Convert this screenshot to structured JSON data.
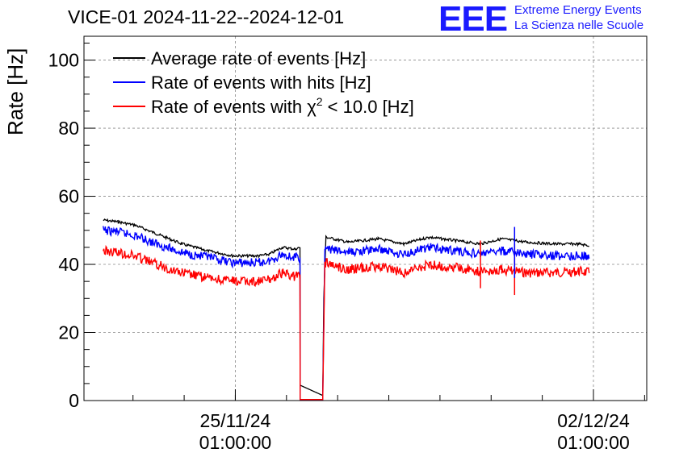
{
  "chart_data": {
    "type": "line",
    "title": "VICE-01 2024-11-22--2024-12-01",
    "ylabel": "Rate [Hz]",
    "xlabel": "",
    "ylim": [
      0,
      107
    ],
    "yticks": [
      0,
      20,
      40,
      60,
      80,
      100
    ],
    "xlim": [
      "2024-11-22T02:00",
      "2024-12-03T02:00"
    ],
    "xticks": [
      {
        "t": "2024-11-25T01:00",
        "date": "25/11/24",
        "time": "01:00:00"
      },
      {
        "t": "2024-12-02T01:00",
        "date": "02/12/24",
        "time": "01:00:00"
      }
    ],
    "grid": true,
    "legend_position": "top-left",
    "series": [
      {
        "name": "Average rate of events [Hz]",
        "color": "#000000",
        "points": [
          [
            "2024-11-22T11:00",
            53.0
          ],
          [
            "2024-11-22T18:00",
            52.5
          ],
          [
            "2024-11-23T02:00",
            51.5
          ],
          [
            "2024-11-23T12:00",
            49.0
          ],
          [
            "2024-11-24T00:00",
            46.0
          ],
          [
            "2024-11-24T12:00",
            44.0
          ],
          [
            "2024-11-25T00:00",
            42.5
          ],
          [
            "2024-11-25T12:00",
            42.5
          ],
          [
            "2024-11-25T17:00",
            43.0
          ],
          [
            "2024-11-25T23:00",
            45.0
          ],
          [
            "2024-11-26T05:00",
            44.5
          ],
          [
            "2024-11-26T07:20",
            45.0
          ],
          [
            "2024-11-26T07:25",
            4.5
          ],
          [
            "2024-11-26T18:00",
            1.5
          ],
          [
            "2024-11-26T18:30",
            30.0
          ],
          [
            "2024-11-26T19:30",
            48.0
          ],
          [
            "2024-11-27T06:00",
            46.5
          ],
          [
            "2024-11-27T20:00",
            47.5
          ],
          [
            "2024-11-28T08:00",
            46.0
          ],
          [
            "2024-11-28T20:00",
            48.0
          ],
          [
            "2024-11-29T08:00",
            47.0
          ],
          [
            "2024-11-29T20:00",
            46.0
          ],
          [
            "2024-11-30T06:00",
            47.5
          ],
          [
            "2024-11-30T18:00",
            46.5
          ],
          [
            "2024-12-01T06:00",
            46.0
          ],
          [
            "2024-12-01T18:00",
            46.0
          ],
          [
            "2024-12-01T23:00",
            45.5
          ]
        ]
      },
      {
        "name": "Rate of events with hits [Hz]",
        "color": "#0000ff",
        "points": [
          [
            "2024-11-22T11:00",
            50.0
          ],
          [
            "2024-11-22T18:00",
            49.5
          ],
          [
            "2024-11-23T02:00",
            48.5
          ],
          [
            "2024-11-23T12:00",
            46.0
          ],
          [
            "2024-11-24T00:00",
            43.5
          ],
          [
            "2024-11-24T12:00",
            42.0
          ],
          [
            "2024-11-25T00:00",
            40.5
          ],
          [
            "2024-11-25T12:00",
            40.5
          ],
          [
            "2024-11-25T17:00",
            41.0
          ],
          [
            "2024-11-25T23:00",
            43.0
          ],
          [
            "2024-11-26T05:00",
            42.0
          ],
          [
            "2024-11-26T07:20",
            42.0
          ],
          [
            "2024-11-26T07:25",
            0.3
          ],
          [
            "2024-11-26T18:00",
            0.3
          ],
          [
            "2024-11-26T19:00",
            44.5
          ],
          [
            "2024-11-27T06:00",
            43.5
          ],
          [
            "2024-11-27T20:00",
            44.5
          ],
          [
            "2024-11-28T08:00",
            43.0
          ],
          [
            "2024-11-28T20:00",
            45.0
          ],
          [
            "2024-11-29T08:00",
            44.0
          ],
          [
            "2024-11-29T20:00",
            43.0
          ],
          [
            "2024-11-30T06:00",
            44.0
          ],
          [
            "2024-11-30T18:00",
            43.0
          ],
          [
            "2024-12-01T06:00",
            42.5
          ],
          [
            "2024-12-01T18:00",
            42.5
          ],
          [
            "2024-12-01T23:00",
            42.5
          ]
        ]
      },
      {
        "name": "Rate of events with χ² < 10.0 [Hz]",
        "color": "#ff0000",
        "points": [
          [
            "2024-11-22T11:00",
            44.0
          ],
          [
            "2024-11-22T18:00",
            43.5
          ],
          [
            "2024-11-23T02:00",
            42.5
          ],
          [
            "2024-11-23T12:00",
            40.0
          ],
          [
            "2024-11-24T00:00",
            37.5
          ],
          [
            "2024-11-24T12:00",
            36.0
          ],
          [
            "2024-11-25T00:00",
            35.0
          ],
          [
            "2024-11-25T12:00",
            35.0
          ],
          [
            "2024-11-25T17:00",
            35.5
          ],
          [
            "2024-11-25T23:00",
            37.5
          ],
          [
            "2024-11-26T05:00",
            36.5
          ],
          [
            "2024-11-26T07:20",
            37.0
          ],
          [
            "2024-11-26T07:25",
            0.3
          ],
          [
            "2024-11-26T18:00",
            0.3
          ],
          [
            "2024-11-26T19:00",
            40.5
          ],
          [
            "2024-11-27T06:00",
            38.5
          ],
          [
            "2024-11-27T20:00",
            39.5
          ],
          [
            "2024-11-28T08:00",
            37.5
          ],
          [
            "2024-11-28T20:00",
            40.0
          ],
          [
            "2024-11-29T08:00",
            39.0
          ],
          [
            "2024-11-29T20:00",
            38.0
          ],
          [
            "2024-11-30T06:00",
            38.5
          ],
          [
            "2024-11-30T18:00",
            37.5
          ],
          [
            "2024-12-01T06:00",
            37.5
          ],
          [
            "2024-12-01T18:00",
            38.0
          ],
          [
            "2024-12-01T23:00",
            37.5
          ]
        ]
      }
    ]
  },
  "legend": [
    {
      "text": "Average rate of events [Hz]",
      "color": "#000000"
    },
    {
      "text": "Rate of events with hits [Hz]",
      "color": "#0000ff"
    },
    {
      "prefix": "Rate of events with χ",
      "sup": "2",
      "suffix": " < 10.0 [Hz]",
      "color": "#ff0000"
    }
  ],
  "logo": {
    "mark": "EEE",
    "line1": "Extreme Energy Events",
    "line2": "La Scienza nelle Scuole",
    "color": "#1a1aff"
  }
}
